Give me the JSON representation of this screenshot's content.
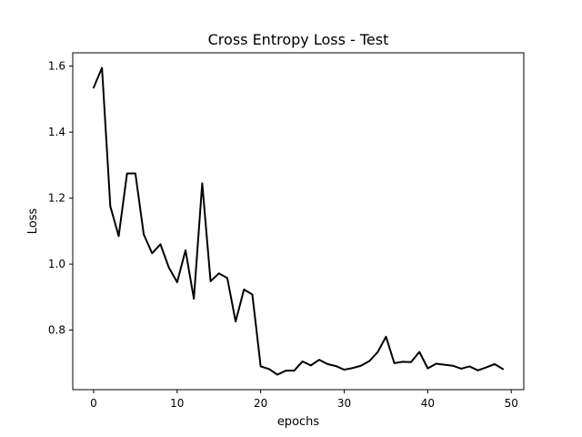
{
  "chart_data": {
    "type": "line",
    "title": "Cross Entropy Loss - Test",
    "xlabel": "epochs",
    "ylabel": "Loss",
    "xlim": [
      -2.5,
      51.5
    ],
    "ylim": [
      0.6195,
      1.6405
    ],
    "xticks": [
      0,
      10,
      20,
      30,
      40,
      50
    ],
    "yticks": [
      0.8,
      1.0,
      1.2,
      1.4,
      1.6
    ],
    "xtick_labels": [
      "0",
      "10",
      "20",
      "30",
      "40",
      "50"
    ],
    "ytick_labels": [
      "0.8",
      "1.0",
      "1.2",
      "1.4",
      "1.6"
    ],
    "grid": false,
    "line_color": "#000000",
    "series": [
      {
        "x": [
          0,
          1,
          2,
          3,
          4,
          5,
          6,
          7,
          8,
          9,
          10,
          11,
          12,
          13,
          14,
          15,
          16,
          17,
          18,
          19,
          20,
          21,
          22,
          23,
          24,
          25,
          26,
          27,
          28,
          29,
          30,
          31,
          32,
          33,
          34,
          35,
          36,
          37,
          38,
          39,
          40,
          41,
          42,
          43,
          44,
          45,
          46,
          47,
          48,
          49
        ],
        "values": [
          1.535,
          1.595,
          1.175,
          1.085,
          1.275,
          1.275,
          1.09,
          1.033,
          1.06,
          0.99,
          0.945,
          1.042,
          0.895,
          1.245,
          0.948,
          0.972,
          0.958,
          0.826,
          0.923,
          0.908,
          0.69,
          0.682,
          0.665,
          0.677,
          0.677,
          0.705,
          0.693,
          0.71,
          0.697,
          0.691,
          0.68,
          0.685,
          0.692,
          0.706,
          0.733,
          0.78,
          0.7,
          0.704,
          0.703,
          0.734,
          0.684,
          0.698,
          0.695,
          0.692,
          0.683,
          0.69,
          0.678,
          0.687,
          0.697,
          0.682
        ]
      }
    ]
  }
}
